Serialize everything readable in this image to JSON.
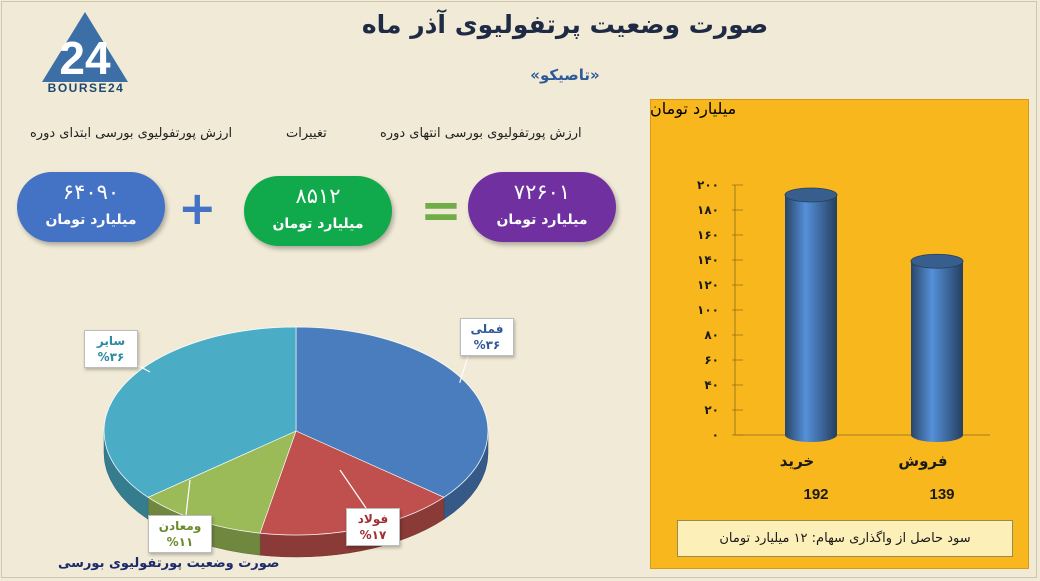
{
  "header": {
    "title": "صورت وضعیت پرتفولیوی آذر ماه",
    "subtitle": "«تاصیکو»",
    "logo_text": "BOURSE24"
  },
  "summary": {
    "col_start_label": "ارزش پورتفولیوی بورسی ابتدای دوره",
    "col_change_label": "تغییرات",
    "col_end_label": "ارزش پورتفولیوی بورسی انتهای دوره",
    "start_value": "۶۴۰۹۰",
    "change_value": "۸۵۱۲",
    "end_value": "۷۲۶۰۱",
    "unit": "میلیارد تومان",
    "plus": "+",
    "equals": "=",
    "colors": {
      "start": "#4472c4",
      "change": "#10a94b",
      "end": "#7030a0",
      "plus_sign": "#4472c4",
      "equals_sign": "#70ad47"
    }
  },
  "chart_data": [
    {
      "type": "pie",
      "title": "صورت وضعیت پورتفولیوی بورسی",
      "slices": [
        {
          "name": "فملی",
          "value": 36,
          "label": "%۳۶",
          "color": "#4a7dbd"
        },
        {
          "name": "فولاد",
          "value": 17,
          "label": "%۱۷",
          "color": "#c0504d"
        },
        {
          "name": "ومعادن",
          "value": 11,
          "label": "%۱۱",
          "color": "#9bbb59"
        },
        {
          "name": "سایر",
          "value": 36,
          "label": "%۳۶",
          "color": "#4bacc6"
        }
      ]
    },
    {
      "type": "bar",
      "categories": [
        "خرید",
        "فروش"
      ],
      "values": [
        192,
        139
      ],
      "value_labels": [
        "192",
        "139"
      ],
      "ylabel": "میلیارد تومان",
      "ylim": [
        0,
        200
      ],
      "yticks": [
        0,
        20,
        40,
        60,
        80,
        100,
        120,
        140,
        160,
        180,
        200
      ],
      "ytick_labels": [
        "۰",
        "۲۰",
        "۴۰",
        "۶۰",
        "۸۰",
        "۱۰۰",
        "۱۲۰",
        "۱۴۰",
        "۱۶۰",
        "۱۸۰",
        "۲۰۰"
      ],
      "bar_color": "#4a7dbd",
      "background": "#f8b71c"
    }
  ],
  "note": "سود حاصل از واگذاری سهام: ۱۲ میلیارد تومان"
}
